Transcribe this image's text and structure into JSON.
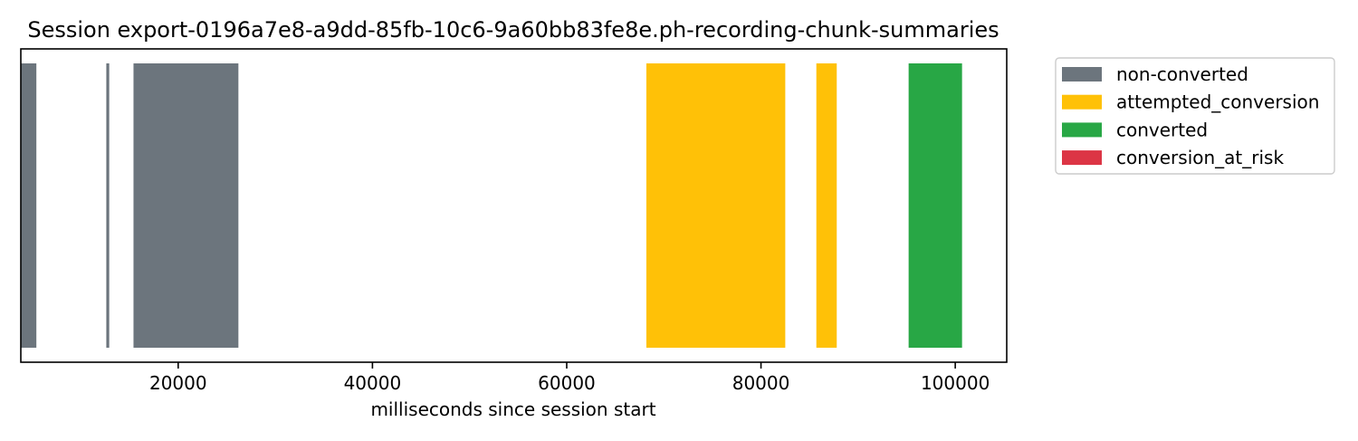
{
  "chart_data": {
    "type": "bar",
    "orientation": "horizontal-timeline",
    "title": "Session export-0196a7e8-a9dd-85fb-10c6-9a60bb83fe8e.ph-recording-chunk-summaries",
    "xlabel": "milliseconds since session start",
    "ylabel": "",
    "xlim": [
      3800,
      105300
    ],
    "xticks": [
      20000,
      40000,
      60000,
      80000,
      100000
    ],
    "xtick_labels": [
      "20000",
      "40000",
      "60000",
      "80000",
      "100000"
    ],
    "grid": false,
    "legend_position": "outside-top-right",
    "categories": [
      "non-converted",
      "attempted_conversion",
      "converted",
      "conversion_at_risk"
    ],
    "colors": {
      "non-converted": "#6c757d",
      "attempted_conversion": "#ffc107",
      "converted": "#28a745",
      "conversion_at_risk": "#dc3545"
    },
    "segments": [
      {
        "category": "non-converted",
        "start": 3800,
        "end": 5400
      },
      {
        "category": "non-converted",
        "start": 12600,
        "end": 12900
      },
      {
        "category": "non-converted",
        "start": 15400,
        "end": 26200
      },
      {
        "category": "attempted_conversion",
        "start": 68200,
        "end": 82500
      },
      {
        "category": "attempted_conversion",
        "start": 85700,
        "end": 87800
      },
      {
        "category": "converted",
        "start": 95200,
        "end": 100700
      }
    ]
  }
}
